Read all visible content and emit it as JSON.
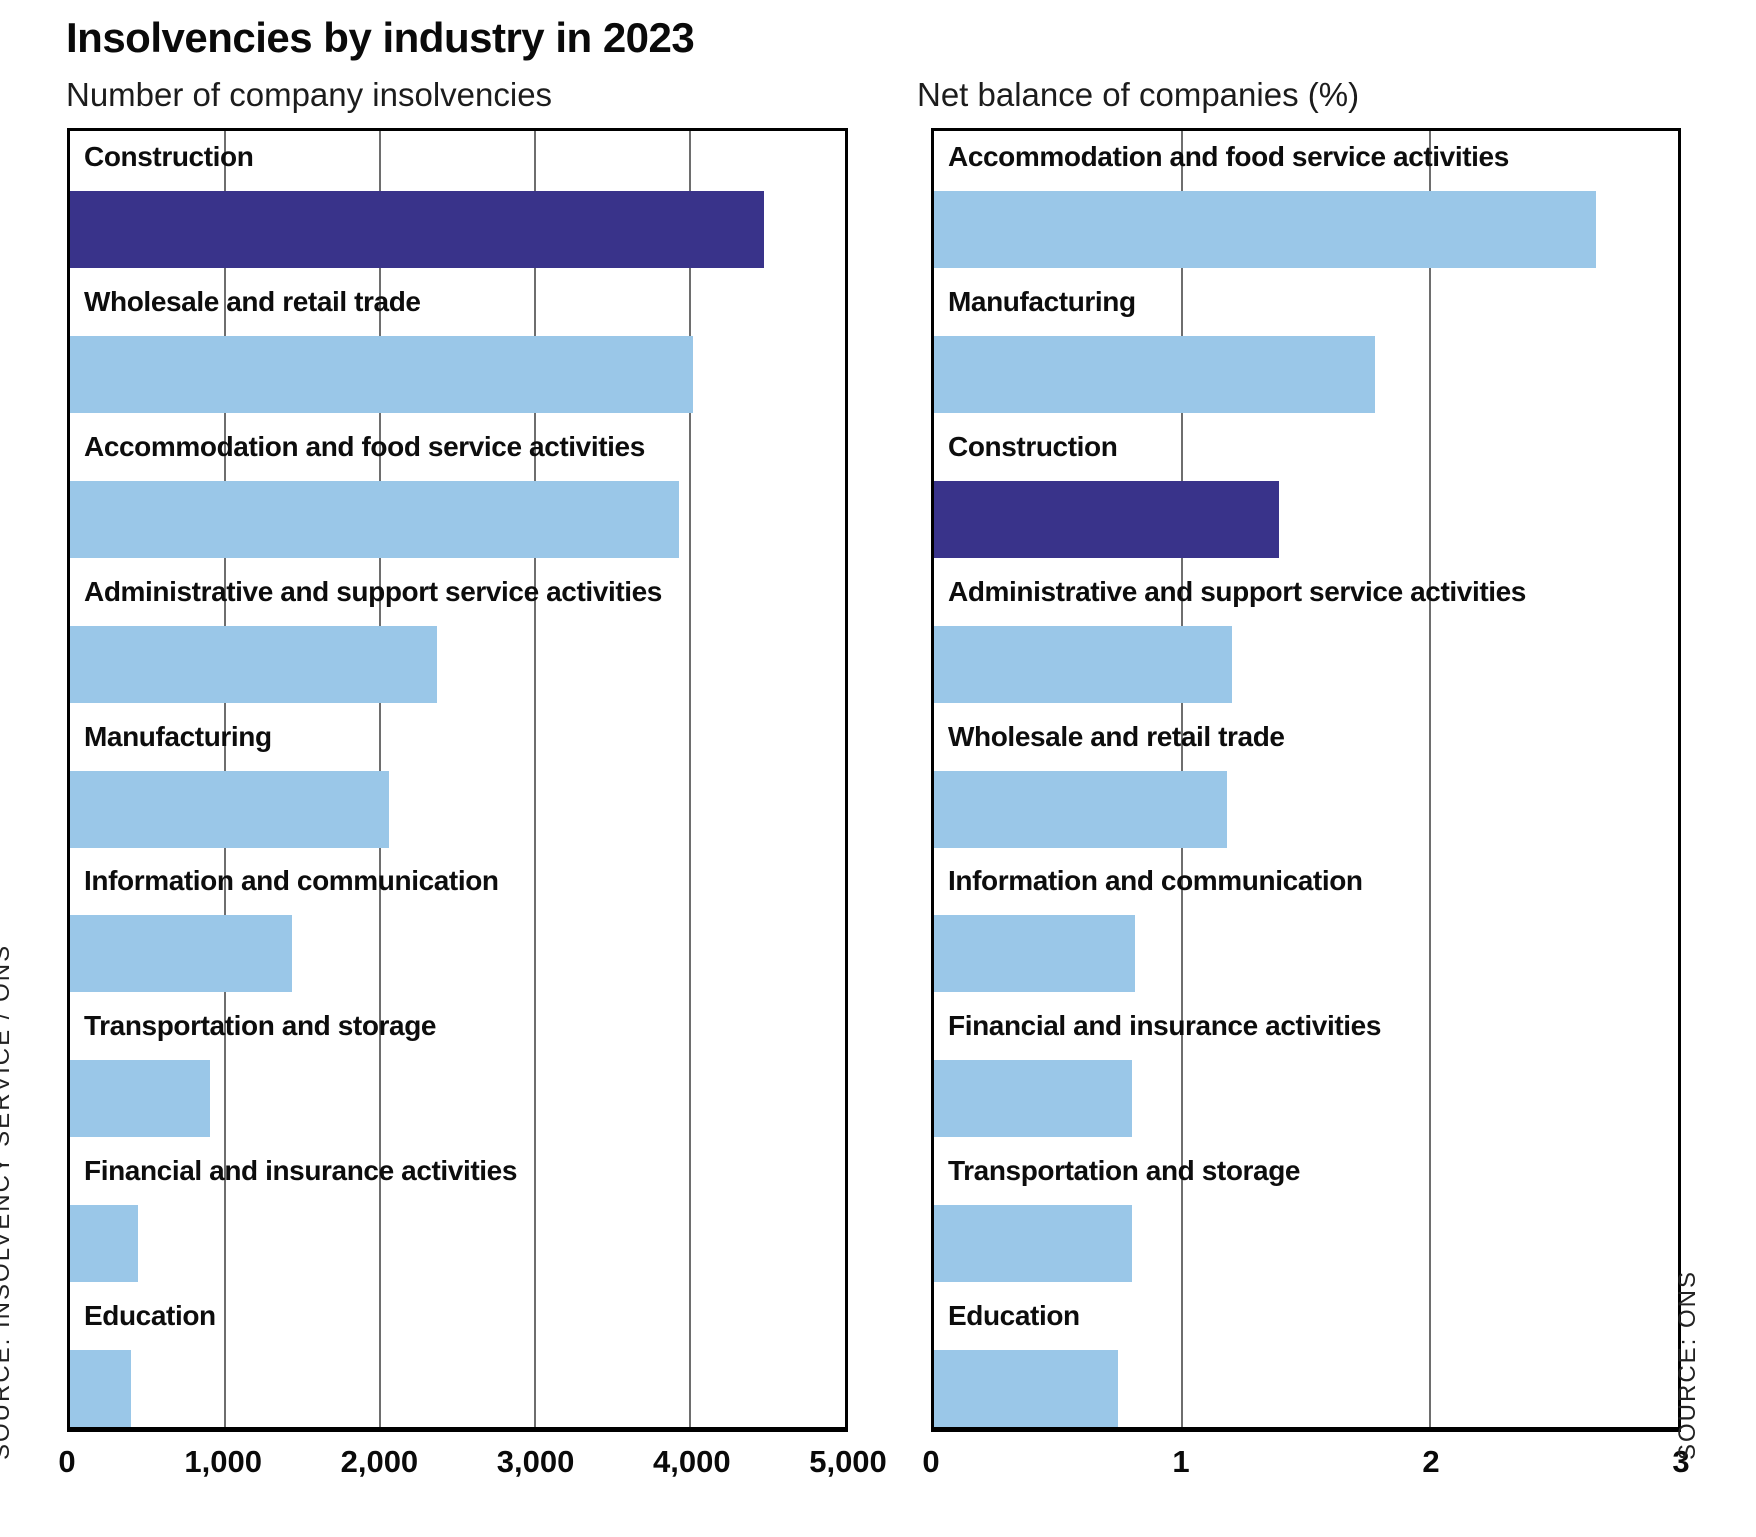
{
  "title": "Insolvencies by industry in 2023",
  "colors": {
    "bar_default": "#9ac7e8",
    "bar_highlight": "#39338a",
    "gridline": "#6e6e6e",
    "border": "#000000"
  },
  "chart_data": [
    {
      "type": "bar",
      "orientation": "horizontal",
      "subtitle": "Number of company insolvencies",
      "source": "SOURCE: INSOLVENCY SERVICE / ONS",
      "xlim": [
        0,
        5000
      ],
      "tick_labels": [
        "0",
        "1,000",
        "2,000",
        "3,000",
        "4,000",
        "5,000"
      ],
      "grid": true,
      "categories": [
        "Construction",
        "Wholesale and retail trade",
        "Accommodation and food service activities",
        "Administrative and support service activities",
        "Manufacturing",
        "Information and communication",
        "Transportation and storage",
        "Financial and insurance activities",
        "Education"
      ],
      "values": [
        4480,
        4020,
        3930,
        2370,
        2060,
        1430,
        900,
        440,
        395
      ],
      "highlighted_category": "Construction"
    },
    {
      "type": "bar",
      "orientation": "horizontal",
      "subtitle": "Net balance of companies (%)",
      "source": "SOURCE: ONS",
      "xlim": [
        0,
        3
      ],
      "tick_labels": [
        "0",
        "1",
        "2",
        "3"
      ],
      "grid": true,
      "categories": [
        "Accommodation and food service activities",
        "Manufacturing",
        "Construction",
        "Administrative and support service activities",
        "Wholesale and retail trade",
        "Information and communication",
        "Financial and insurance activities",
        "Transportation and storage",
        "Education"
      ],
      "values": [
        2.67,
        1.78,
        1.39,
        1.2,
        1.18,
        0.81,
        0.8,
        0.8,
        0.74
      ],
      "highlighted_category": "Construction"
    }
  ]
}
